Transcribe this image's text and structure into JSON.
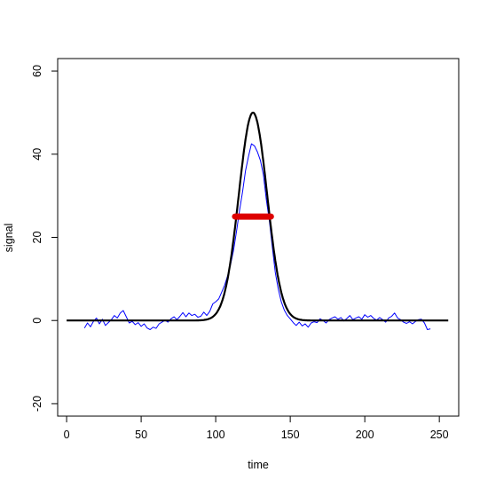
{
  "chart_data": {
    "type": "line",
    "title": "",
    "xlabel": "time",
    "ylabel": "signal",
    "xlim": [
      -6,
      263
    ],
    "ylim": [
      -23,
      63
    ],
    "x_ticks": [
      0,
      50,
      100,
      150,
      200,
      250
    ],
    "y_ticks": [
      -20,
      0,
      20,
      40,
      60
    ],
    "grid": false,
    "legend": "none",
    "series": [
      {
        "color": "#0000ff",
        "style": "thin line",
        "points": [
          [
            12,
            -1.8
          ],
          [
            14,
            -0.6
          ],
          [
            16,
            -1.5
          ],
          [
            18,
            -0.2
          ],
          [
            20,
            0.6
          ],
          [
            22,
            -0.8
          ],
          [
            24,
            0.3
          ],
          [
            26,
            -1.2
          ],
          [
            28,
            -0.5
          ],
          [
            30,
            0.2
          ],
          [
            32,
            1.2
          ],
          [
            34,
            0.6
          ],
          [
            36,
            1.8
          ],
          [
            38,
            2.4
          ],
          [
            40,
            0.9
          ],
          [
            42,
            -0.6
          ],
          [
            44,
            -0.2
          ],
          [
            46,
            -1.0
          ],
          [
            48,
            -0.5
          ],
          [
            50,
            -1.4
          ],
          [
            52,
            -0.8
          ],
          [
            54,
            -1.8
          ],
          [
            56,
            -2.2
          ],
          [
            58,
            -1.6
          ],
          [
            60,
            -1.9
          ],
          [
            62,
            -0.8
          ],
          [
            64,
            -0.4
          ],
          [
            66,
            0.1
          ],
          [
            68,
            -0.4
          ],
          [
            70,
            0.4
          ],
          [
            72,
            0.9
          ],
          [
            74,
            0.2
          ],
          [
            76,
            1.0
          ],
          [
            78,
            1.9
          ],
          [
            80,
            0.9
          ],
          [
            82,
            1.8
          ],
          [
            84,
            1.2
          ],
          [
            86,
            1.5
          ],
          [
            88,
            0.8
          ],
          [
            90,
            1.0
          ],
          [
            92,
            2.0
          ],
          [
            94,
            1.2
          ],
          [
            96,
            2.2
          ],
          [
            98,
            4.0
          ],
          [
            100,
            4.5
          ],
          [
            102,
            5.2
          ],
          [
            104,
            6.8
          ],
          [
            106,
            8.5
          ],
          [
            108,
            10.8
          ],
          [
            110,
            13.5
          ],
          [
            112,
            17.0
          ],
          [
            114,
            21.5
          ],
          [
            116,
            26.5
          ],
          [
            118,
            31.0
          ],
          [
            120,
            36.0
          ],
          [
            122,
            39.5
          ],
          [
            124,
            42.5
          ],
          [
            126,
            42.0
          ],
          [
            128,
            40.5
          ],
          [
            130,
            38.5
          ],
          [
            132,
            35.0
          ],
          [
            134,
            29.0
          ],
          [
            136,
            24.0
          ],
          [
            138,
            17.5
          ],
          [
            140,
            11.5
          ],
          [
            142,
            7.5
          ],
          [
            144,
            4.5
          ],
          [
            146,
            2.5
          ],
          [
            148,
            1.2
          ],
          [
            150,
            0.4
          ],
          [
            152,
            -0.5
          ],
          [
            154,
            -1.2
          ],
          [
            156,
            -0.4
          ],
          [
            158,
            -1.3
          ],
          [
            160,
            -0.8
          ],
          [
            162,
            -1.6
          ],
          [
            164,
            -0.6
          ],
          [
            166,
            -0.3
          ],
          [
            168,
            -0.5
          ],
          [
            170,
            0.4
          ],
          [
            172,
            0.0
          ],
          [
            174,
            -0.6
          ],
          [
            176,
            0.2
          ],
          [
            178,
            0.6
          ],
          [
            180,
            0.9
          ],
          [
            182,
            0.3
          ],
          [
            184,
            0.7
          ],
          [
            186,
            -0.1
          ],
          [
            188,
            0.5
          ],
          [
            190,
            1.2
          ],
          [
            192,
            0.2
          ],
          [
            194,
            0.6
          ],
          [
            196,
            0.9
          ],
          [
            198,
            0.3
          ],
          [
            200,
            1.4
          ],
          [
            202,
            0.8
          ],
          [
            204,
            1.2
          ],
          [
            206,
            0.5
          ],
          [
            208,
            0.1
          ],
          [
            210,
            0.7
          ],
          [
            212,
            0.2
          ],
          [
            214,
            -0.4
          ],
          [
            216,
            0.6
          ],
          [
            218,
            1.0
          ],
          [
            220,
            1.8
          ],
          [
            222,
            0.6
          ],
          [
            224,
            0.2
          ],
          [
            226,
            -0.4
          ],
          [
            228,
            -0.7
          ],
          [
            230,
            -0.3
          ],
          [
            232,
            -0.8
          ],
          [
            234,
            -0.2
          ],
          [
            236,
            0.2
          ],
          [
            238,
            0.3
          ],
          [
            240,
            -0.6
          ],
          [
            242,
            -2.2
          ],
          [
            244,
            -2.0
          ]
        ]
      },
      {
        "color": "#000000",
        "style": "thick line",
        "shape": "gaussian",
        "center": 125,
        "amplitude": 50,
        "sigma": 9.5,
        "baseline": 0,
        "x_range": [
          0,
          256
        ]
      },
      {
        "color": "#dd0000",
        "style": "thick segment",
        "x": [
          113,
          137
        ],
        "y": [
          25,
          25
        ]
      }
    ]
  }
}
